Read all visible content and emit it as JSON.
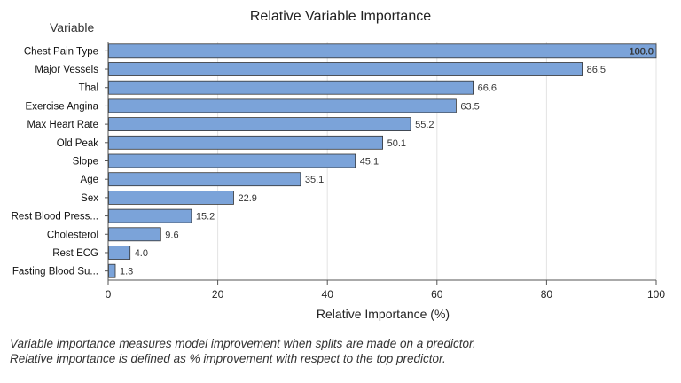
{
  "chart_data": {
    "type": "bar",
    "orientation": "horizontal",
    "title": "Relative Variable Importance",
    "ylabel": "Variable",
    "xlabel": "Relative Importance (%)",
    "xlim": [
      0,
      100
    ],
    "xticks": [
      0,
      20,
      40,
      60,
      80,
      100
    ],
    "grid": "vertical",
    "categories": [
      "Chest Pain Type",
      "Major Vessels",
      "Thal",
      "Exercise Angina",
      "Max Heart Rate",
      "Old Peak",
      "Slope",
      "Age",
      "Sex",
      "Rest Blood Press...",
      "Cholesterol",
      "Rest ECG",
      "Fasting Blood Su..."
    ],
    "values": [
      100.0,
      86.5,
      66.6,
      63.5,
      55.2,
      50.1,
      45.1,
      35.1,
      22.9,
      15.2,
      9.6,
      4.0,
      1.3
    ],
    "value_labels": [
      "100.0",
      "86.5",
      "66.6",
      "63.5",
      "55.2",
      "50.1",
      "45.1",
      "35.1",
      "22.9",
      "15.2",
      "9.6",
      "4.0",
      "1.3"
    ],
    "bar_color": "#7ba3d9",
    "bar_edge_color": "#333333"
  },
  "footnote": {
    "line1": "Variable importance measures model improvement when splits are made on a predictor.",
    "line2": "Relative importance is defined as % improvement with respect to the top predictor."
  }
}
